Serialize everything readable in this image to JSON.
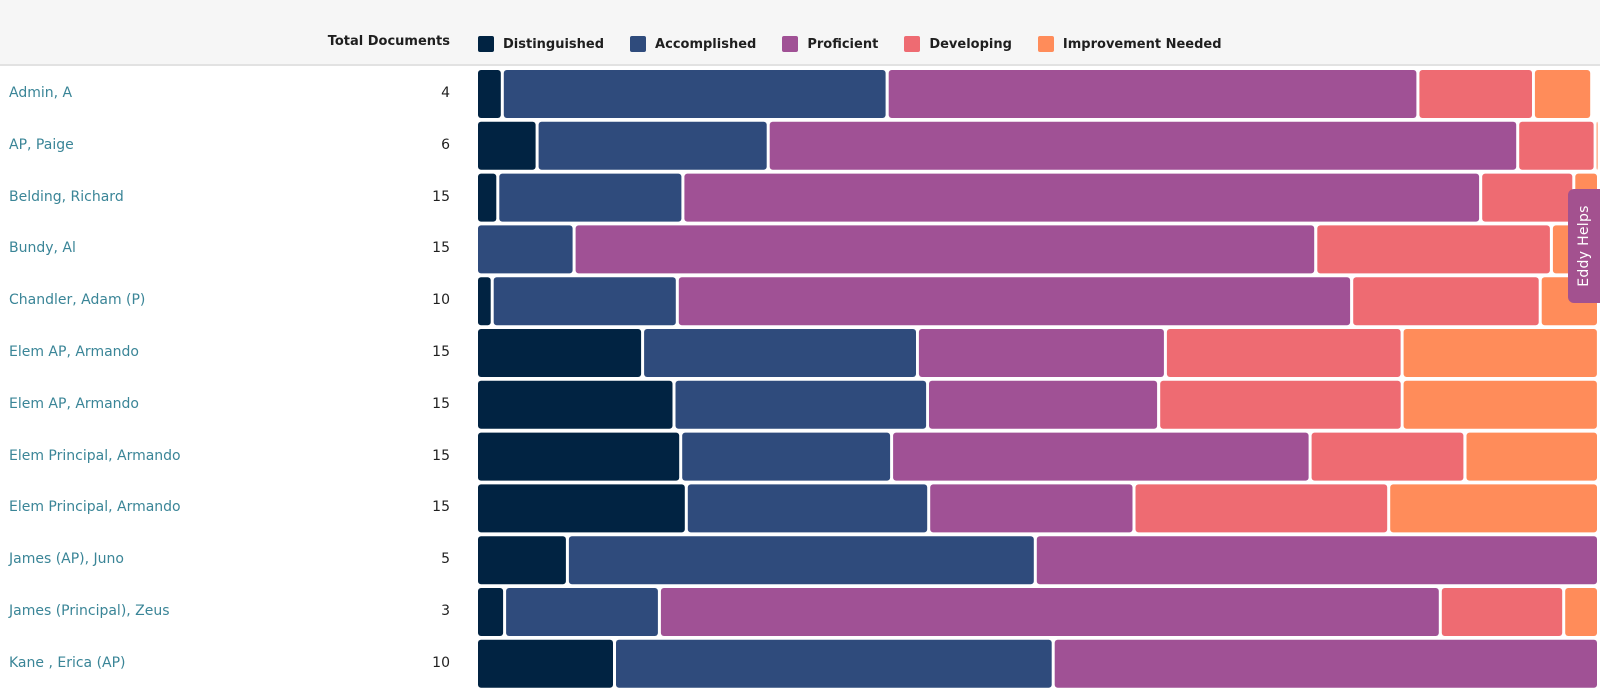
{
  "colors": {
    "distinguished": "#012342",
    "accomplished": "#2f4b7c",
    "proficient": "#a05195",
    "developing": "#ee6b72",
    "improvement_needed": "#ff8c5a"
  },
  "help_tab": {
    "label": "Eddy Helps"
  },
  "chart_data": {
    "type": "bar",
    "orientation": "horizontal",
    "stacked": true,
    "normalized": true,
    "title": "",
    "total_column_label": "Total Documents",
    "legend_position": "top",
    "categories": [
      "Admin, A",
      "AP, Paige",
      "Belding, Richard",
      "Bundy, Al",
      "Chandler, Adam (P)",
      "Elem AP, Armando",
      "Elem AP, Armando",
      "Elem Principal, Armando",
      "Elem Principal, Armando",
      "James (AP), Juno",
      "James (Principal), Zeus",
      "Kane , Erica (AP)"
    ],
    "totals": [
      4,
      6,
      15,
      15,
      10,
      15,
      15,
      15,
      15,
      5,
      3,
      10
    ],
    "series": [
      {
        "name": "Distinguished",
        "key": "distinguished",
        "values": [
          2.3,
          5.4,
          1.9,
          0,
          1.4,
          14.8,
          17.6,
          18.2,
          18.7,
          8.1,
          2.5,
          12.3
        ]
      },
      {
        "name": "Accomplished",
        "key": "accomplished",
        "values": [
          34.3,
          20.6,
          16.5,
          8.7,
          16.5,
          24.5,
          22.6,
          18.8,
          21.6,
          41.7,
          13.8,
          39.1
        ]
      },
      {
        "name": "Proficient",
        "key": "proficient",
        "values": [
          47.3,
          66.8,
          71.1,
          66.1,
          60.1,
          22.1,
          20.6,
          37.3,
          18.3,
          50.2,
          69.6,
          48.6
        ]
      },
      {
        "name": "Developing",
        "key": "developing",
        "values": [
          10.3,
          6.9,
          8.3,
          21.0,
          16.8,
          21.1,
          21.7,
          13.8,
          22.7,
          0,
          11.0,
          0
        ]
      },
      {
        "name": "Improvement Needed",
        "key": "improvement_needed",
        "values": [
          5.2,
          0.3,
          2.2,
          4.2,
          5.2,
          17.5,
          17.5,
          11.9,
          18.7,
          0,
          3.1,
          0
        ]
      }
    ],
    "unit": "% of rated elements"
  }
}
